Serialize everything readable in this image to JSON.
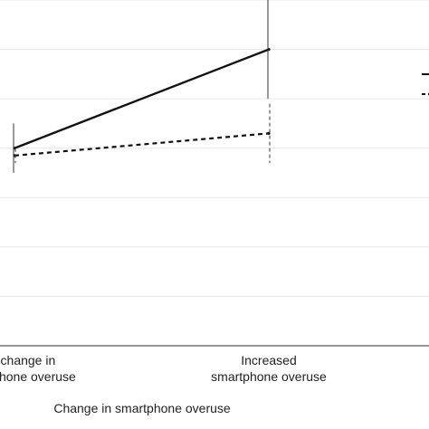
{
  "chart_data": {
    "type": "line",
    "title": "",
    "xlabel": "Change in smartphone overuse",
    "ylabel": "",
    "categories": [
      [
        "No change in",
        "smartphone overuse"
      ],
      [
        "Increased",
        "smartphone overuse"
      ]
    ],
    "ylim": [
      0,
      7
    ],
    "grid": true,
    "legend": "right (clipped)",
    "series": [
      {
        "style": "solid",
        "color": "#111111",
        "values": [
          4.0,
          6.0
        ],
        "error_low": [
          3.5,
          5.0
        ],
        "error_high": [
          4.5,
          7.1
        ]
      },
      {
        "style": "dashed",
        "color": "#111111",
        "values": [
          3.85,
          4.3
        ],
        "error_low": [
          3.7,
          3.7
        ],
        "error_high": [
          4.0,
          4.9
        ]
      }
    ]
  }
}
